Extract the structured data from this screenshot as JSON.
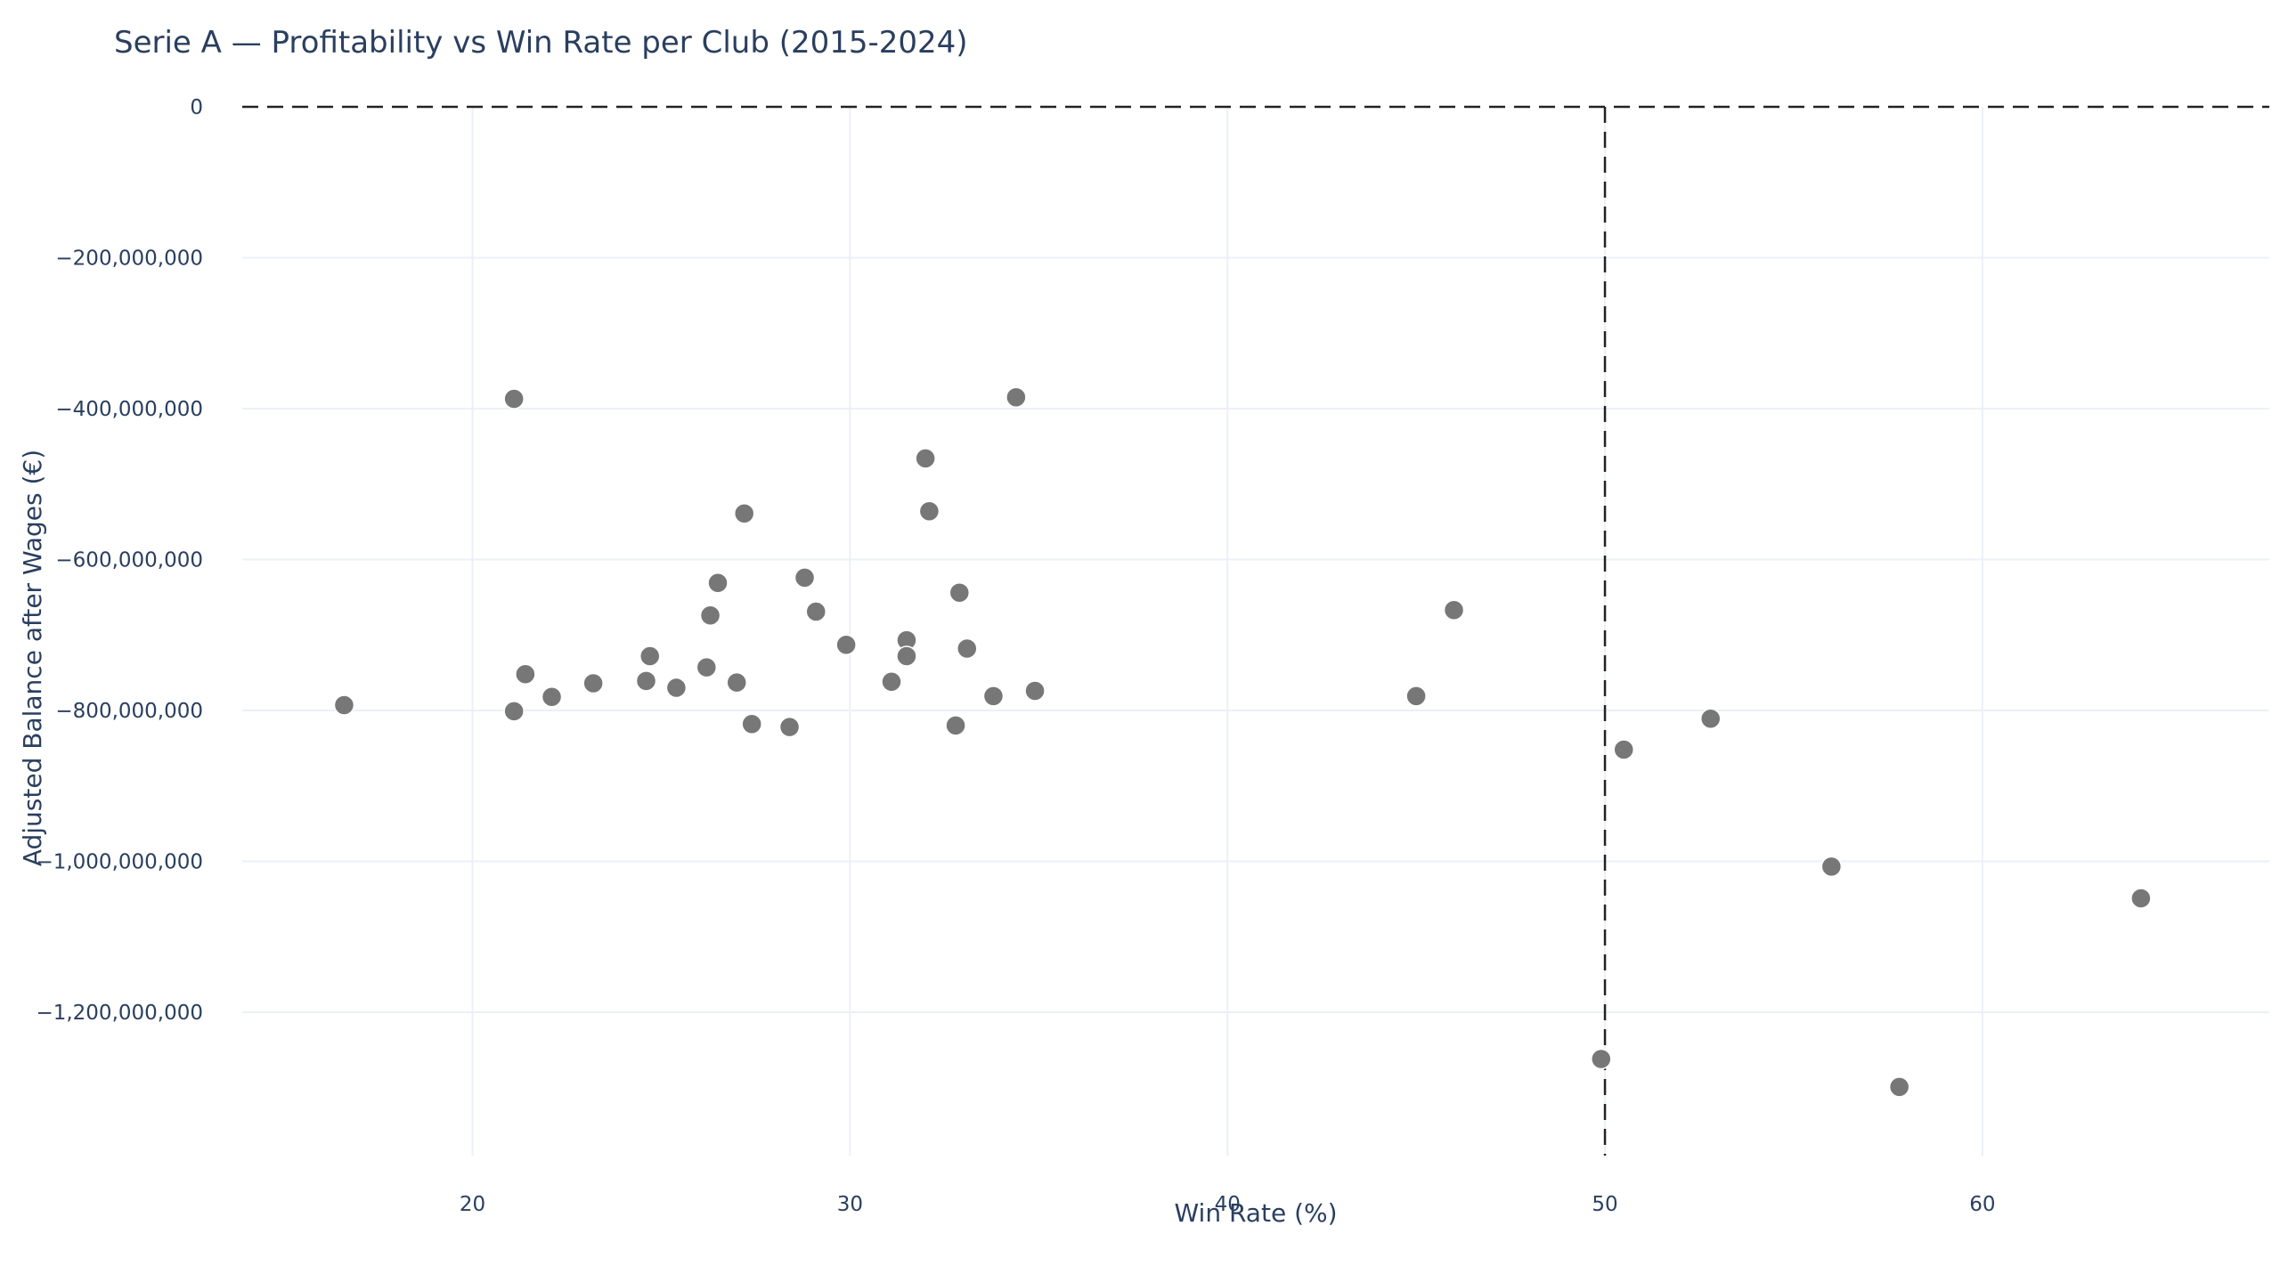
{
  "chart_data": {
    "type": "scatter",
    "title": "Serie A — Profitability vs Win Rate per Club (2015-2024)",
    "xlabel": "Win Rate (%)",
    "ylabel": "Adjusted Balance after Wages (€)",
    "xlim": [
      13.9,
      67.6
    ],
    "ylim": [
      -1390000000,
      0
    ],
    "x_ticks": [
      20,
      30,
      40,
      50,
      60
    ],
    "y_ticks": [
      0,
      -200000000,
      -400000000,
      -600000000,
      -800000000,
      -1000000000,
      -1200000000
    ],
    "y_tick_labels": [
      "0",
      "−200,000,000",
      "−400,000,000",
      "−600,000,000",
      "−800,000,000",
      "−1,000,000,000",
      "−1,200,000,000"
    ],
    "grid": true,
    "reference_lines": {
      "y": 0,
      "x": 50
    },
    "marker_color": "#777777",
    "points": [
      {
        "x": 16.6,
        "y": -793000000
      },
      {
        "x": 21.1,
        "y": -387000000
      },
      {
        "x": 21.1,
        "y": -801000000
      },
      {
        "x": 21.4,
        "y": -752000000
      },
      {
        "x": 22.1,
        "y": -782000000
      },
      {
        "x": 23.2,
        "y": -764000000
      },
      {
        "x": 24.6,
        "y": -761000000
      },
      {
        "x": 24.7,
        "y": -728000000
      },
      {
        "x": 25.4,
        "y": -770000000
      },
      {
        "x": 26.2,
        "y": -743000000
      },
      {
        "x": 26.3,
        "y": -674000000
      },
      {
        "x": 26.5,
        "y": -631000000
      },
      {
        "x": 27.0,
        "y": -763000000
      },
      {
        "x": 27.2,
        "y": -539000000
      },
      {
        "x": 27.4,
        "y": -818000000
      },
      {
        "x": 28.4,
        "y": -822000000
      },
      {
        "x": 28.8,
        "y": -624000000
      },
      {
        "x": 29.1,
        "y": -669000000
      },
      {
        "x": 29.9,
        "y": -713000000
      },
      {
        "x": 31.1,
        "y": -762000000
      },
      {
        "x": 31.5,
        "y": -707000000
      },
      {
        "x": 31.5,
        "y": -728000000
      },
      {
        "x": 32.0,
        "y": -466000000
      },
      {
        "x": 32.1,
        "y": -536000000
      },
      {
        "x": 32.8,
        "y": -820000000
      },
      {
        "x": 32.9,
        "y": -644000000
      },
      {
        "x": 33.1,
        "y": -718000000
      },
      {
        "x": 33.8,
        "y": -781000000
      },
      {
        "x": 34.4,
        "y": -385000000
      },
      {
        "x": 34.9,
        "y": -774000000
      },
      {
        "x": 45.0,
        "y": -781000000
      },
      {
        "x": 46.0,
        "y": -667000000
      },
      {
        "x": 49.9,
        "y": -1262000000
      },
      {
        "x": 50.5,
        "y": -852000000
      },
      {
        "x": 52.8,
        "y": -811000000
      },
      {
        "x": 56.0,
        "y": -1007000000
      },
      {
        "x": 57.8,
        "y": -1299000000
      },
      {
        "x": 64.2,
        "y": -1049000000
      }
    ]
  }
}
